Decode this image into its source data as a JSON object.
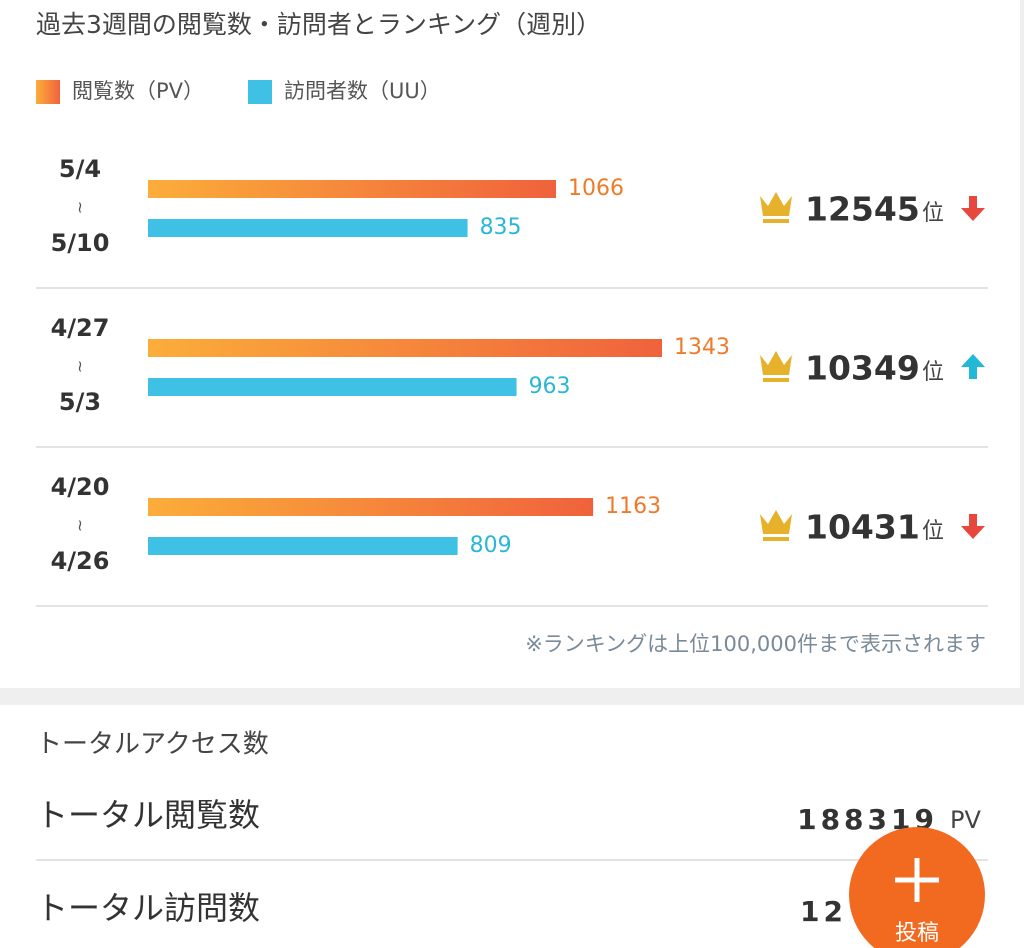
{
  "title": "過去3週間の閲覧数・訪問者とランキング（週別）",
  "legend": [
    {
      "name": "閲覧数（PV）",
      "color": "#f2773a"
    },
    {
      "name": "訪問者数（UU）",
      "color": "#3fc1e6"
    }
  ],
  "range_mark": "≀",
  "weeks": [
    {
      "start": "5/4",
      "end": "5/10",
      "pv": 1066,
      "uu": 835,
      "rank": 12545,
      "rank_unit": "位",
      "trend": "down"
    },
    {
      "start": "4/27",
      "end": "5/3",
      "pv": 1343,
      "uu": 963,
      "rank": 10349,
      "rank_unit": "位",
      "trend": "up"
    },
    {
      "start": "4/20",
      "end": "4/26",
      "pv": 1163,
      "uu": 809,
      "rank": 10431,
      "rank_unit": "位",
      "trend": "down"
    }
  ],
  "note": "※ランキングは上位100,000件まで表示されます",
  "totals": {
    "heading": "トータルアクセス数",
    "rows": [
      {
        "label": "トータル閲覧数",
        "value": "188319",
        "unit": "PV"
      },
      {
        "label": "トータル訪問数",
        "value": "12"
      }
    ]
  },
  "fab": {
    "label": "投稿"
  }
}
